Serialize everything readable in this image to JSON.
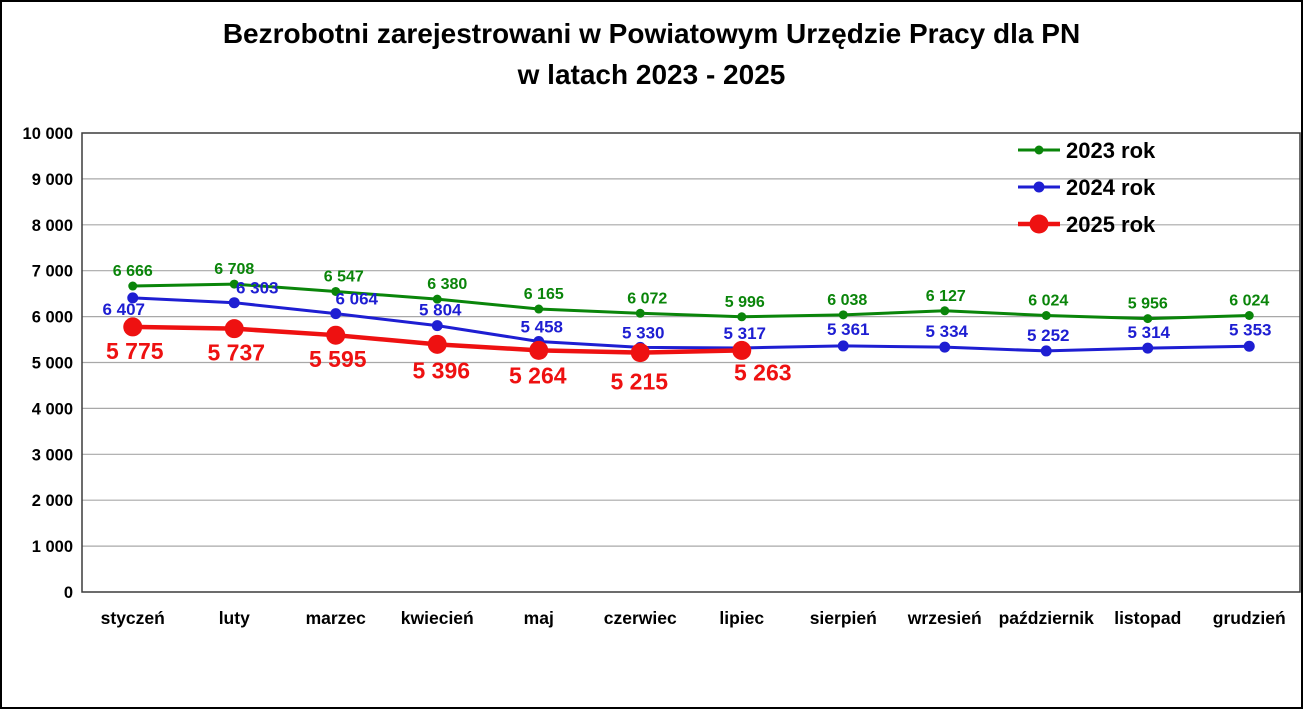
{
  "title": {
    "line1": "Bezrobotni zarejestrowani w Powiatowym Urzędzie Pracy dla PN",
    "line2": "w latach 2023 - 2025"
  },
  "chart_data": {
    "type": "line",
    "title": "Bezrobotni zarejestrowani w Powiatowym Urzędzie Pracy dla PN w latach 2023 - 2025",
    "categories": [
      "styczeń",
      "luty",
      "marzec",
      "kwiecień",
      "maj",
      "czerwiec",
      "lipiec",
      "sierpień",
      "wrzesień",
      "październik",
      "listopad",
      "grudzień"
    ],
    "series": [
      {
        "name": "2023 rok",
        "color": "#0A850A",
        "values": [
          6666,
          6708,
          6547,
          6380,
          6165,
          6072,
          5996,
          6038,
          6127,
          6024,
          5956,
          6024
        ],
        "marker_radius": 4.5,
        "line_width": 3,
        "label_position": "above",
        "label_font_size": 16
      },
      {
        "name": "2024 rok",
        "color": "#1E1ED2",
        "values": [
          6407,
          6303,
          6064,
          5804,
          5458,
          5330,
          5317,
          5361,
          5334,
          5252,
          5314,
          5353
        ],
        "marker_radius": 5.5,
        "line_width": 3,
        "label_position": "above",
        "label_font_size": 17
      },
      {
        "name": "2025 rok",
        "color": "#EE1111",
        "values": [
          5775,
          5737,
          5595,
          5396,
          5264,
          5215,
          5263
        ],
        "marker_radius": 9.5,
        "line_width": 4.5,
        "label_position": "below",
        "label_font_size": 23
      }
    ],
    "ylim": [
      0,
      10000
    ],
    "y_axis": {
      "min": 0,
      "max": 10000,
      "step": 1000,
      "tick_labels": [
        "0",
        "1 000",
        "2 000",
        "3 000",
        "4 000",
        "5 000",
        "6 000",
        "7 000",
        "8 000",
        "9 000",
        "10 000"
      ]
    },
    "grid": true,
    "legend_position": "top-right",
    "number_format": "space-thousands",
    "colors": {
      "gridline": "#A8A8A8",
      "plot_border": "#3B3B3B",
      "text": "#000000",
      "background": "#FFFFFF"
    }
  }
}
